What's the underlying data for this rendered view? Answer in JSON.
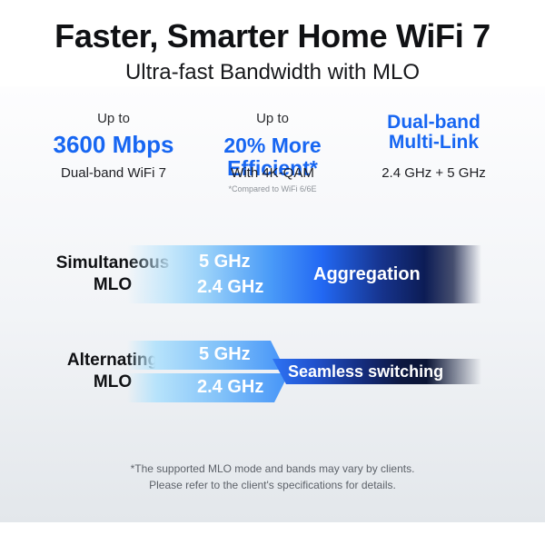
{
  "header": {
    "title": "Faster, Smarter Home WiFi 7",
    "subtitle": "Ultra-fast Bandwidth with MLO"
  },
  "stats": {
    "columns": [
      {
        "kicker": "Up to",
        "value": "3600 Mbps",
        "sub": "Dual-band WiFi 7",
        "note": ""
      },
      {
        "kicker": "Up to",
        "value": "20% More Efficient*",
        "sub": "With 4K-QAM",
        "note": "*Compared to WiFi 6/6E"
      },
      {
        "kicker": "",
        "value": "Dual-band Multi-Link",
        "sub": "2.4 GHz + 5 GHz",
        "note": ""
      }
    ]
  },
  "diagram": {
    "simultaneous": {
      "label_line1": "Simultaneous",
      "label_line2": "MLO",
      "band_top": "5 GHz",
      "band_bottom": "2.4 GHz",
      "caption": "Aggregation"
    },
    "alternating": {
      "label_line1": "Alternating",
      "label_line2": "MLO",
      "band_top": "5 GHz",
      "band_bottom": "2.4 GHz",
      "caption": "Seamless switching"
    }
  },
  "footnote": {
    "line1": "*The supported MLO mode and bands may vary by clients.",
    "line2": "Please refer to the client's specifications for details."
  },
  "colors": {
    "accent_blue": "#1766f2",
    "band_light_blue": "#9bd2f9",
    "band_mid_blue": "#2268f3",
    "band_navy": "#0c1c55",
    "background_gray": "#e3e7eb",
    "footnote_gray": "#5d6269"
  }
}
